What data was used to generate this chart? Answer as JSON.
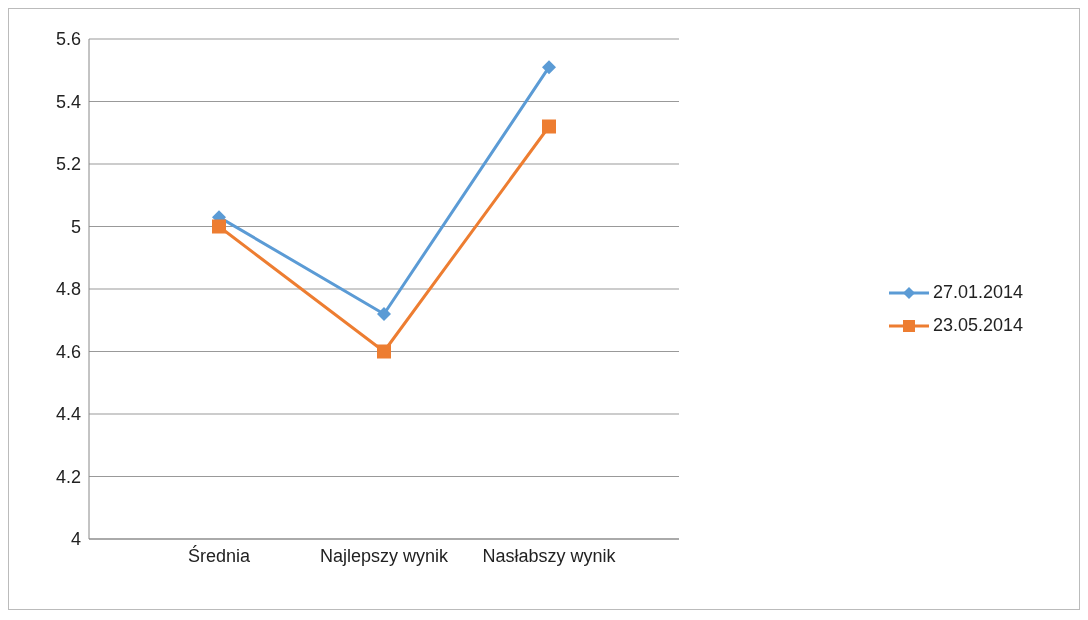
{
  "chart_data": {
    "type": "line",
    "categories": [
      "Średnia",
      "Najlepszy wynik",
      "Nasłabszy wynik"
    ],
    "series": [
      {
        "name": "27.01.2014",
        "color": "#5b9bd5",
        "values": [
          5.03,
          4.72,
          5.51
        ],
        "marker": "diamond"
      },
      {
        "name": "23.05.2014",
        "color": "#ed7d31",
        "values": [
          5.0,
          4.6,
          5.32
        ],
        "marker": "square"
      }
    ],
    "ylim": [
      4,
      5.6
    ],
    "yticks": [
      4,
      4.2,
      4.4,
      4.6,
      4.8,
      5,
      5.2,
      5.4,
      5.6
    ],
    "grid": "y",
    "legend": "right",
    "line_style": "solid"
  }
}
